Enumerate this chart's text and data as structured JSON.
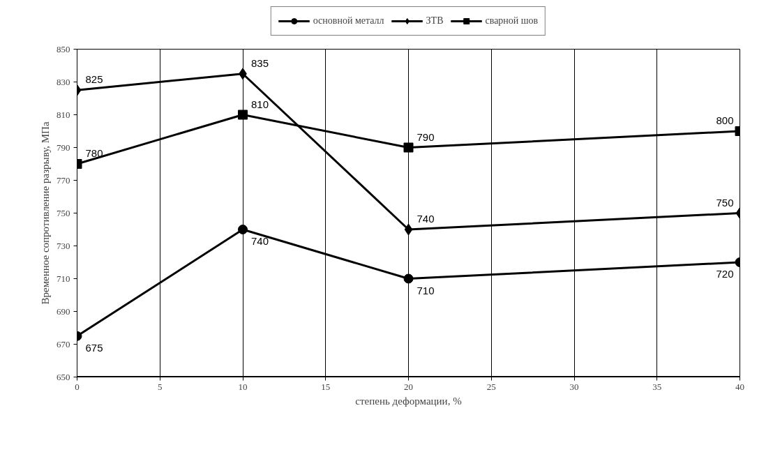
{
  "chart_data": {
    "type": "line",
    "xlabel": "степень деформации, %",
    "ylabel": "Временное сопротивление разрыву, МПа",
    "x": [
      0,
      10,
      20,
      40
    ],
    "series": [
      {
        "name": "основной металл",
        "color": "#000000",
        "marker": "circle",
        "values": [
          675,
          740,
          710,
          720
        ]
      },
      {
        "name": "ЗТВ",
        "color": "#000000",
        "marker": "diamond",
        "values": [
          825,
          835,
          740,
          750
        ]
      },
      {
        "name": "сварной шов",
        "color": "#000000",
        "marker": "square",
        "values": [
          780,
          810,
          790,
          800
        ]
      }
    ],
    "xlim": [
      0,
      40
    ],
    "xticks": [
      0,
      5,
      10,
      15,
      20,
      25,
      30,
      35,
      40
    ],
    "ylim": [
      650,
      850
    ],
    "yticks": [
      650,
      670,
      690,
      710,
      730,
      750,
      770,
      790,
      810,
      830,
      850
    ],
    "grid": "x",
    "legend": "top",
    "data_labels": true,
    "line_style": "solid"
  }
}
